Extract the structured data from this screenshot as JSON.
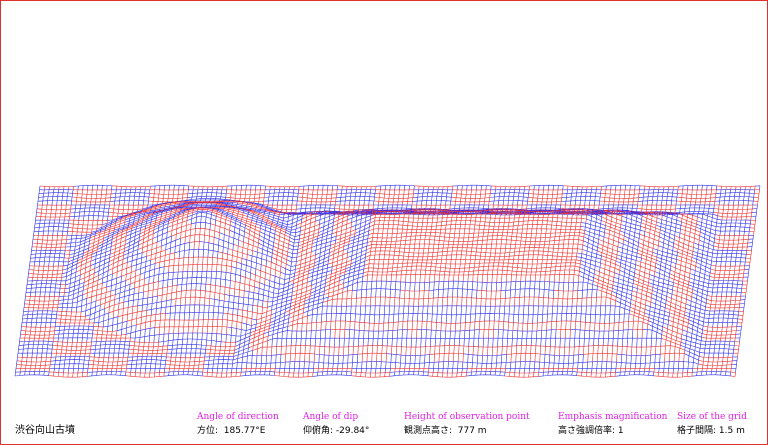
{
  "title": "渋谷向山古墳",
  "parameters": [
    {
      "label": "Angle of direction",
      "value": "方位:  185.77°E"
    },
    {
      "label": "Angle of dip",
      "value": "仰俯角: -29.84°"
    },
    {
      "label": "Height of observation point",
      "value": "観測点高さ:  777 m"
    },
    {
      "label": "Emphasis magnification",
      "value": "高さ強調倍率: 1"
    },
    {
      "label": "Size of the grid",
      "value": "格子間隔: 1.5 m"
    }
  ]
}
